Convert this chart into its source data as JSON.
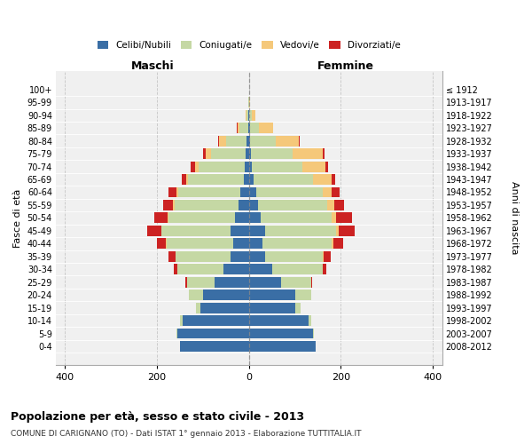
{
  "age_groups_bottom_to_top": [
    "0-4",
    "5-9",
    "10-14",
    "15-19",
    "20-24",
    "25-29",
    "30-34",
    "35-39",
    "40-44",
    "45-49",
    "50-54",
    "55-59",
    "60-64",
    "65-69",
    "70-74",
    "75-79",
    "80-84",
    "85-89",
    "90-94",
    "95-99",
    "100+"
  ],
  "birth_years_bottom_to_top": [
    "2008-2012",
    "2003-2007",
    "1998-2002",
    "1993-1997",
    "1988-1992",
    "1983-1987",
    "1978-1982",
    "1973-1977",
    "1968-1972",
    "1963-1967",
    "1958-1962",
    "1953-1957",
    "1948-1952",
    "1943-1947",
    "1938-1942",
    "1933-1937",
    "1928-1932",
    "1923-1927",
    "1918-1922",
    "1913-1917",
    "≤ 1912"
  ],
  "males_celibe": [
    150,
    155,
    145,
    105,
    100,
    75,
    55,
    40,
    35,
    40,
    30,
    22,
    18,
    12,
    10,
    7,
    5,
    2,
    1,
    0,
    0
  ],
  "males_coniugato": [
    1,
    2,
    5,
    10,
    30,
    60,
    100,
    120,
    145,
    150,
    145,
    140,
    135,
    120,
    100,
    75,
    45,
    18,
    5,
    1,
    0
  ],
  "males_vedovo": [
    0,
    0,
    0,
    0,
    0,
    0,
    0,
    0,
    1,
    1,
    2,
    3,
    4,
    5,
    8,
    12,
    15,
    5,
    2,
    0,
    0
  ],
  "males_divorziato": [
    0,
    0,
    0,
    0,
    1,
    3,
    8,
    15,
    20,
    30,
    30,
    22,
    18,
    10,
    8,
    5,
    2,
    1,
    0,
    0,
    0
  ],
  "females_nubile": [
    145,
    140,
    130,
    100,
    100,
    70,
    50,
    35,
    30,
    35,
    25,
    20,
    15,
    10,
    7,
    5,
    3,
    2,
    1,
    0,
    0
  ],
  "females_coniugata": [
    1,
    2,
    5,
    12,
    35,
    65,
    110,
    125,
    150,
    155,
    155,
    150,
    145,
    130,
    110,
    90,
    55,
    20,
    5,
    1,
    0
  ],
  "females_vedova": [
    0,
    0,
    0,
    0,
    0,
    0,
    1,
    2,
    3,
    5,
    10,
    15,
    20,
    40,
    50,
    65,
    50,
    30,
    8,
    2,
    0
  ],
  "females_divorziata": [
    0,
    0,
    0,
    0,
    1,
    3,
    8,
    15,
    22,
    35,
    35,
    22,
    18,
    8,
    6,
    4,
    2,
    1,
    0,
    0,
    0
  ],
  "color_celibe": "#3a6ea5",
  "color_coniugato": "#c5d8a4",
  "color_vedovo": "#f5c87a",
  "color_divorziato": "#cc2222",
  "title": "Popolazione per età, sesso e stato civile - 2013",
  "subtitle": "COMUNE DI CARIGNANO (TO) - Dati ISTAT 1° gennaio 2013 - Elaborazione TUTTITALIA.IT",
  "label_maschi": "Maschi",
  "label_femmine": "Femmine",
  "ylabel_left": "Fasce di età",
  "ylabel_right": "Anni di nascita",
  "xlim": 420,
  "bg_color": "#f0f0f0",
  "legend_labels": [
    "Celibi/Nubili",
    "Coniugati/e",
    "Vedovi/e",
    "Divorziati/e"
  ]
}
